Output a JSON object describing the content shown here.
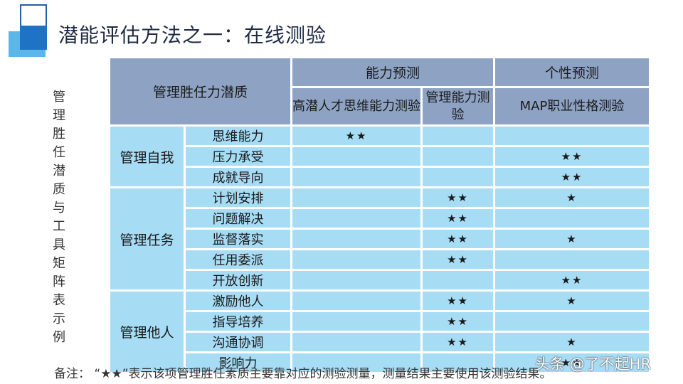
{
  "title": "潜能评估方法之一：在线测验",
  "vertical_label": [
    "管",
    "理",
    "胜",
    "任",
    "潜",
    "质",
    "与",
    "工",
    "具",
    "矩",
    "阵",
    "表",
    "示",
    "例"
  ],
  "header": {
    "competency": "管理胜任力潜质",
    "ability": "能力预测",
    "personality": "个性预测",
    "test_thinking": "高潜人才思维能力测验",
    "test_management": "管理能力测验",
    "test_map": "MAP职业性格测验"
  },
  "groups": [
    {
      "name": "管理自我",
      "rows": [
        {
          "item": "思维能力",
          "thinking": "★★",
          "management": "",
          "map": ""
        },
        {
          "item": "压力承受",
          "thinking": "",
          "management": "",
          "map": "★★"
        },
        {
          "item": "成就导向",
          "thinking": "",
          "management": "",
          "map": "★★"
        }
      ]
    },
    {
      "name": "管理任务",
      "rows": [
        {
          "item": "计划安排",
          "thinking": "",
          "management": "★★",
          "map": "★"
        },
        {
          "item": "问题解决",
          "thinking": "",
          "management": "★★",
          "map": ""
        },
        {
          "item": "监督落实",
          "thinking": "",
          "management": "★★",
          "map": "★"
        },
        {
          "item": "任用委派",
          "thinking": "",
          "management": "★★",
          "map": ""
        },
        {
          "item": "开放创新",
          "thinking": "",
          "management": "",
          "map": "★★"
        }
      ]
    },
    {
      "name": "管理他人",
      "rows": [
        {
          "item": "激励他人",
          "thinking": "",
          "management": "★★",
          "map": "★"
        },
        {
          "item": "指导培养",
          "thinking": "",
          "management": "★★",
          "map": ""
        },
        {
          "item": "沟通协调",
          "thinking": "",
          "management": "★★",
          "map": "★"
        },
        {
          "item": "影响力",
          "thinking": "",
          "management": "",
          "map": "★★"
        }
      ]
    }
  ],
  "note": "备注：  “★★”表示该项管理胜任素质主要靠对应的测验测量，测量结果主要使用该测验结果。",
  "watermark": "头条 @了不起HR",
  "colors": {
    "header_bg": "#8ea3c4",
    "body_bg": "#a7dcf5",
    "accent": "#1f73c6"
  }
}
